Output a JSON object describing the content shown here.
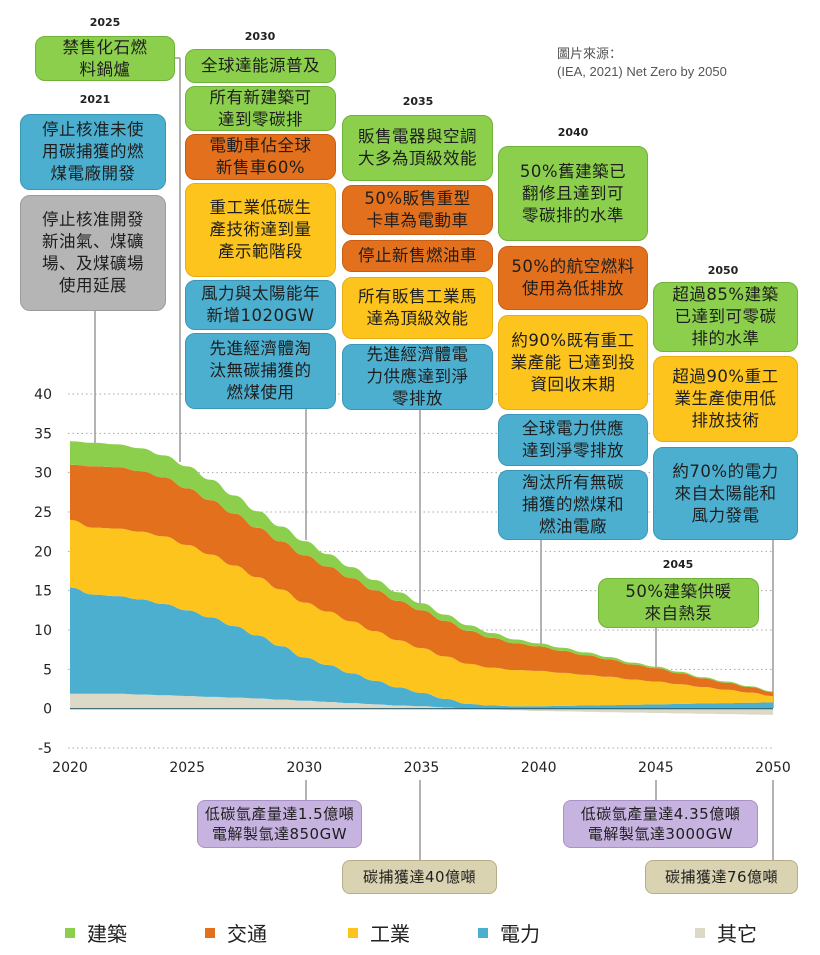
{
  "source_note": "圖片來源：\n(IEA, 2021) Net Zero by 2050",
  "milestones": {
    "y2021": {
      "year": "2021",
      "items": [
        {
          "text": "停止核准未使\n用碳捕獲的燃\n煤電廠開發",
          "sector": "power"
        },
        {
          "text": "停止核准開發\n新油氣、煤礦\n場、及煤礦場\n使用延展",
          "sector": "other"
        }
      ]
    },
    "y2025": {
      "year": "2025",
      "items": [
        {
          "text": "禁售化石燃\n料鍋爐",
          "sector": "buildings"
        }
      ]
    },
    "y2030": {
      "year": "2030",
      "items": [
        {
          "text": "全球達能源普及",
          "sector": "buildings"
        },
        {
          "text": "所有新建築可\n達到零碳排",
          "sector": "buildings"
        },
        {
          "text": "電動車佔全球\n新售車60%",
          "sector": "transport"
        },
        {
          "text": "重工業低碳生\n產技術達到量\n產示範階段",
          "sector": "industry"
        },
        {
          "text": "風力與太陽能年\n新增1020GW",
          "sector": "power"
        },
        {
          "text": "先進經濟體淘\n汰無碳捕獲的\n燃煤使用",
          "sector": "power"
        }
      ]
    },
    "y2035": {
      "year": "2035",
      "items": [
        {
          "text": "販售電器與空調\n大多為頂級效能",
          "sector": "buildings"
        },
        {
          "text": "50%販售重型\n卡車為電動車",
          "sector": "transport"
        },
        {
          "text": "停止新售燃油車",
          "sector": "transport"
        },
        {
          "text": "所有販售工業馬\n達為頂級效能",
          "sector": "industry"
        },
        {
          "text": "先進經濟體電\n力供應達到淨\n零排放",
          "sector": "power"
        }
      ]
    },
    "y2040": {
      "year": "2040",
      "items": [
        {
          "text": "50%舊建築已\n翻修且達到可\n零碳排的水準",
          "sector": "buildings"
        },
        {
          "text": "50%的航空燃料\n使用為低排放",
          "sector": "transport"
        },
        {
          "text": "約90%既有重工\n業產能 已達到投\n資回收末期",
          "sector": "industry"
        },
        {
          "text": "全球電力供應\n達到淨零排放",
          "sector": "power"
        },
        {
          "text": "淘汰所有無碳\n捕獲的燃煤和\n燃油電廠",
          "sector": "power"
        }
      ]
    },
    "y2045": {
      "year": "2045",
      "items": [
        {
          "text": "50%建築供暖\n來自熱泵",
          "sector": "buildings"
        }
      ]
    },
    "y2050": {
      "year": "2050",
      "items": [
        {
          "text": "超過85%建築\n已達到可零碳\n排的水準",
          "sector": "buildings"
        },
        {
          "text": "超過90%重工\n業生產使用低\n排放技術",
          "sector": "industry"
        },
        {
          "text": "約70%的電力\n來自太陽能和\n風力發電",
          "sector": "power"
        }
      ]
    },
    "bottom": [
      {
        "text": "低碳氫產量達1.5億噸\n電解製氫達850GW",
        "year": "2030",
        "kind": "hydrogen"
      },
      {
        "text": "碳捕獲達40億噸",
        "year": "2035",
        "kind": "ccus"
      },
      {
        "text": "低碳氫產量達4.35億噸\n電解製氫達3000GW",
        "year": "2045",
        "kind": "hydrogen"
      },
      {
        "text": "碳捕獲達76億噸",
        "year": "2050",
        "kind": "ccus"
      }
    ]
  },
  "colors": {
    "buildings": "#8ccf4d",
    "transport": "#e3701c",
    "industry": "#fcc41d",
    "power": "#4dafcf",
    "other": "#dcd9c6",
    "grid": "#a8a8a8",
    "connector": "#a0a0a0"
  },
  "chart_data": {
    "type": "area",
    "stacked": true,
    "title": "",
    "xlabel": "",
    "ylabel": "",
    "x": [
      2020,
      2021,
      2022,
      2023,
      2024,
      2025,
      2026,
      2027,
      2028,
      2029,
      2030,
      2031,
      2032,
      2033,
      2034,
      2035,
      2036,
      2037,
      2038,
      2039,
      2040,
      2041,
      2042,
      2043,
      2044,
      2045,
      2046,
      2047,
      2048,
      2049,
      2050
    ],
    "xticks": [
      "2020",
      "2025",
      "2030",
      "2035",
      "2040",
      "2045",
      "2050"
    ],
    "yticks": [
      "-5",
      "0",
      "5",
      "10",
      "15",
      "20",
      "25",
      "30",
      "35",
      "40"
    ],
    "xlim": [
      2020,
      2050
    ],
    "ylim": [
      -5,
      40
    ],
    "grid": "horizontal-dotted",
    "legend_position": "bottom",
    "series": [
      {
        "name": "其它",
        "key": "other",
        "values": [
          1.9,
          1.9,
          1.9,
          1.8,
          1.7,
          1.6,
          1.5,
          1.4,
          1.3,
          1.15,
          1.0,
          0.85,
          0.7,
          0.55,
          0.4,
          0.3,
          0.15,
          0.0,
          -0.1,
          -0.2,
          -0.3,
          -0.35,
          -0.4,
          -0.45,
          -0.5,
          -0.55,
          -0.6,
          -0.65,
          -0.7,
          -0.75,
          -0.8
        ]
      },
      {
        "name": "電力",
        "key": "power",
        "values": [
          13.5,
          12.6,
          12.4,
          12.1,
          11.6,
          10.9,
          10.1,
          9.1,
          8.0,
          6.8,
          5.5,
          4.7,
          3.8,
          3.0,
          2.3,
          1.7,
          1.1,
          0.6,
          0.4,
          0.3,
          0.3,
          0.35,
          0.4,
          0.45,
          0.5,
          0.55,
          0.6,
          0.65,
          0.7,
          0.75,
          0.8
        ]
      },
      {
        "name": "工業",
        "key": "industry",
        "values": [
          8.6,
          8.5,
          8.6,
          8.6,
          8.6,
          8.3,
          8.0,
          7.7,
          7.4,
          7.2,
          7.0,
          6.8,
          6.6,
          6.3,
          6.0,
          5.7,
          5.4,
          5.1,
          4.8,
          4.6,
          4.5,
          4.2,
          3.9,
          3.6,
          3.2,
          2.9,
          2.5,
          2.1,
          1.7,
          1.3,
          0.8
        ]
      },
      {
        "name": "交通",
        "key": "transport",
        "values": [
          7.0,
          7.8,
          7.8,
          7.7,
          7.5,
          7.2,
          6.9,
          6.6,
          6.3,
          6.1,
          6.0,
          5.7,
          5.5,
          5.2,
          5.0,
          4.8,
          4.5,
          4.2,
          3.8,
          3.4,
          3.1,
          2.8,
          2.5,
          2.2,
          1.9,
          1.7,
          1.4,
          1.1,
          0.9,
          0.7,
          0.5
        ]
      },
      {
        "name": "建築",
        "key": "buildings",
        "values": [
          3.0,
          3.0,
          2.9,
          2.9,
          2.8,
          2.8,
          2.6,
          2.3,
          2.1,
          1.9,
          1.8,
          1.6,
          1.4,
          1.3,
          1.1,
          0.9,
          0.8,
          0.7,
          0.6,
          0.5,
          0.4,
          0.4,
          0.35,
          0.3,
          0.25,
          0.2,
          0.2,
          0.15,
          0.15,
          0.1,
          0.1
        ]
      }
    ],
    "legend": [
      {
        "label": "建築",
        "key": "buildings"
      },
      {
        "label": "交通",
        "key": "transport"
      },
      {
        "label": "工業",
        "key": "industry"
      },
      {
        "label": "電力",
        "key": "power"
      },
      {
        "label": "其它",
        "key": "other"
      }
    ]
  }
}
